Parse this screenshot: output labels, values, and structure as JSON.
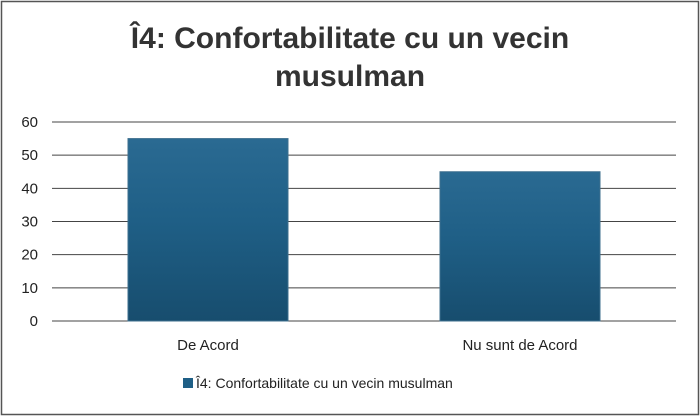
{
  "chart_data": {
    "type": "bar",
    "title_lines": [
      "Î4: Confortabilitate cu un vecin",
      "musulman"
    ],
    "categories": [
      "De Acord",
      "Nu sunt de Acord"
    ],
    "series": [
      {
        "name": "Î4: Confortabilitate cu un vecin musulman",
        "values": [
          55,
          45
        ],
        "color": "#1f5f86"
      }
    ],
    "y_ticks": [
      "0",
      "10",
      "20",
      "30",
      "40",
      "50",
      "60"
    ],
    "ylim": [
      0,
      60
    ],
    "grid": true,
    "legend_position": "bottom-center",
    "xlabel": "",
    "ylabel": ""
  }
}
